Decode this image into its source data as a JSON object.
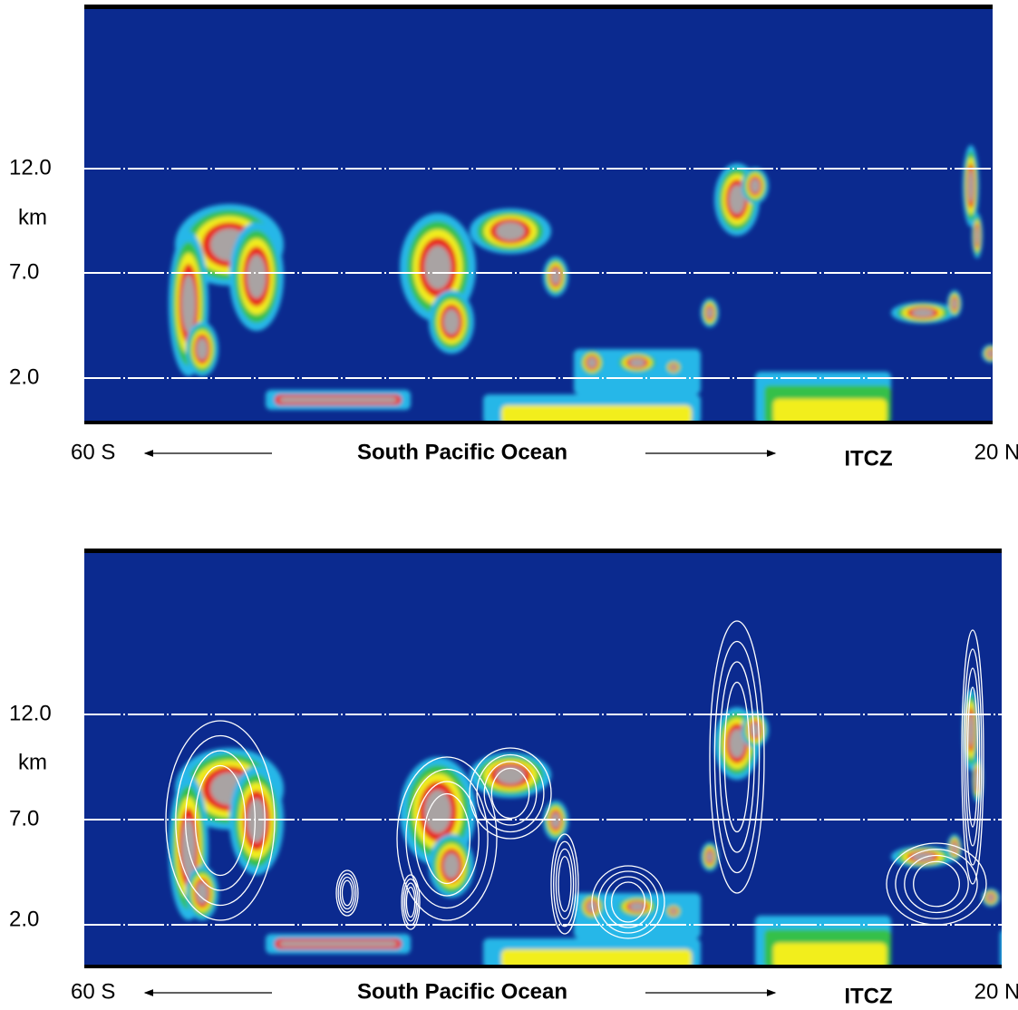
{
  "panels": [
    {
      "y_labels": [
        "12.0",
        "km",
        "7.0",
        "2.0"
      ],
      "x_labels": {
        "left": "60 S",
        "center": "South Pacific Ocean",
        "itcz": "ITCZ",
        "right": "20 N"
      }
    },
    {
      "y_labels": [
        "12.0",
        "km",
        "7.0",
        "2.0"
      ],
      "x_labels": {
        "left": "60 S",
        "center": "South Pacific Ocean",
        "itcz": "ITCZ",
        "right": "20 N"
      }
    }
  ]
}
